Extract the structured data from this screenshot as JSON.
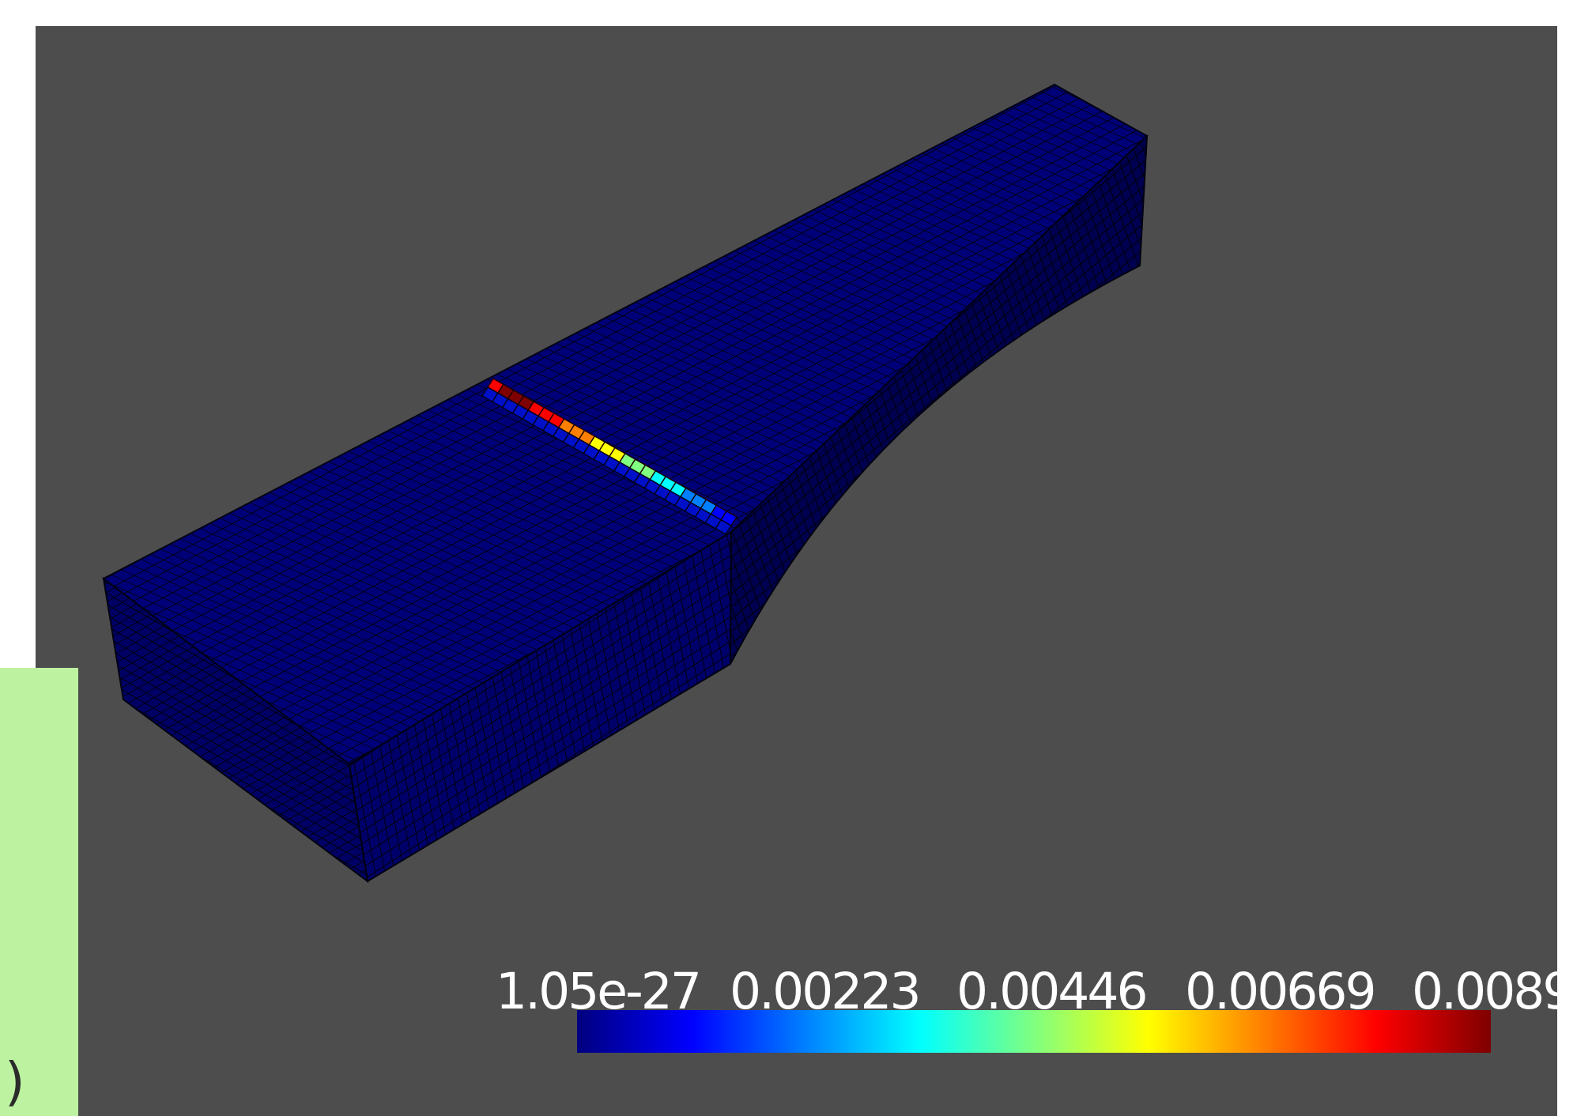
{
  "viewport": {
    "background_color": "#4d4d4d",
    "object": "meshed-beam",
    "object_color": "#000078"
  },
  "color_legend": {
    "tick_labels": [
      "1.05e-27",
      "0.00223",
      "0.00446",
      "0.00669",
      "0.0089"
    ],
    "colormap": "jet",
    "colormap_stops": [
      "#00007f",
      "#0000ff",
      "#0080ff",
      "#00ffff",
      "#80ff80",
      "#ffff00",
      "#ff8000",
      "#ff0000",
      "#7f0000"
    ]
  },
  "side_panel": {
    "background_color": "#bdf2a1",
    "visible_text": ")"
  }
}
